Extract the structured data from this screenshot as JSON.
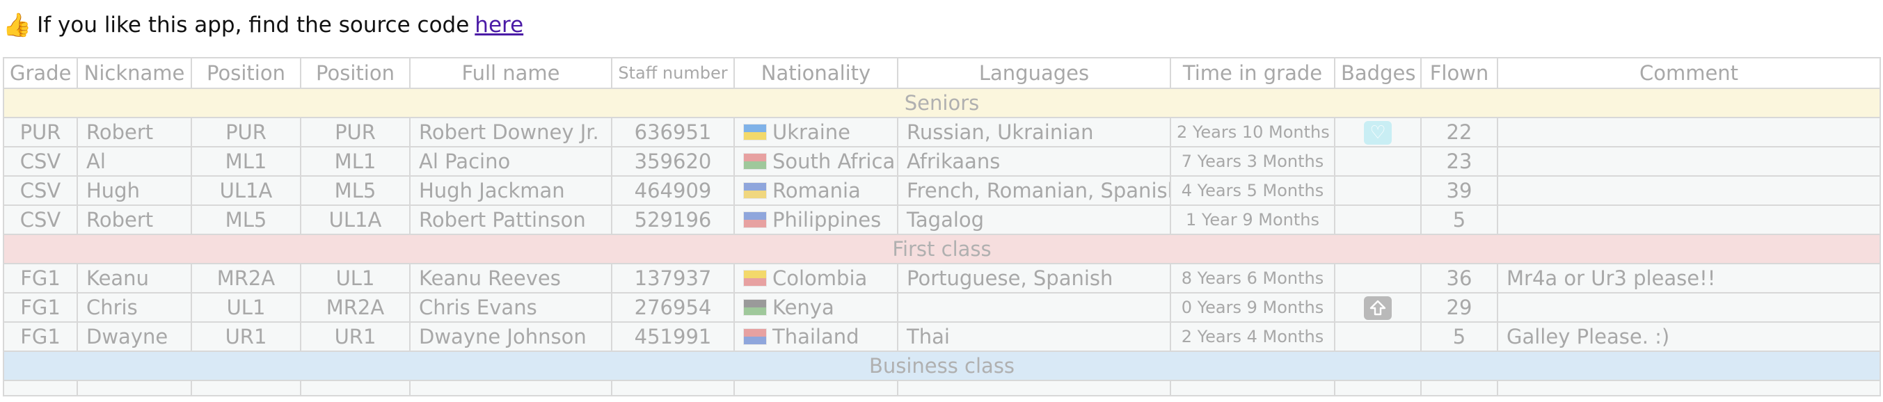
{
  "header": {
    "prefix": "If you like this app, find the source code",
    "link_label": "here"
  },
  "columns": [
    "Grade",
    "Nickname",
    "Position",
    "Position",
    "Full name",
    "Staff number",
    "Nationality",
    "Languages",
    "Time in grade",
    "Badges",
    "Flown",
    "Comment"
  ],
  "sections": [
    {
      "name": "Seniors",
      "color": "#fbf6dd",
      "rows": [
        {
          "grade": "PUR",
          "nickname": "Robert",
          "pos1": "PUR",
          "pos2": "PUR",
          "full_name": "Robert Downey Jr.",
          "staff": "636951",
          "nationality": "Ukraine",
          "flag": [
            "#7fb2e8",
            "#f3d96b"
          ],
          "languages": "Russian, Ukrainian",
          "time": "2 Years 10 Months",
          "badge": "heart-badge",
          "flown": "22",
          "comment": ""
        },
        {
          "grade": "CSV",
          "nickname": "Al",
          "pos1": "ML1",
          "pos2": "ML1",
          "full_name": "Al Pacino",
          "staff": "359620",
          "nationality": "South Africa",
          "flag": [
            "#e7a1a1",
            "#9fc89b"
          ],
          "languages": "Afrikaans",
          "time": "7 Years 3 Months",
          "badge": "",
          "flown": "23",
          "comment": ""
        },
        {
          "grade": "CSV",
          "nickname": "Hugh",
          "pos1": "UL1A",
          "pos2": "ML5",
          "full_name": "Hugh Jackman",
          "staff": "464909",
          "nationality": "Romania",
          "flag": [
            "#8fa6dc",
            "#f0d77f"
          ],
          "languages": "French, Romanian, Spanish",
          "time": "4 Years 5 Months",
          "badge": "",
          "flown": "39",
          "comment": ""
        },
        {
          "grade": "CSV",
          "nickname": "Robert",
          "pos1": "ML5",
          "pos2": "UL1A",
          "full_name": "Robert Pattinson",
          "staff": "529196",
          "nationality": "Philippines",
          "flag": [
            "#8fa6dc",
            "#e7a1a1"
          ],
          "languages": "Tagalog",
          "time": "1 Year 9 Months",
          "badge": "",
          "flown": "5",
          "comment": ""
        }
      ]
    },
    {
      "name": "First class",
      "color": "#f6dede",
      "rows": [
        {
          "grade": "FG1",
          "nickname": "Keanu",
          "pos1": "MR2A",
          "pos2": "UL1",
          "full_name": "Keanu Reeves",
          "staff": "137937",
          "nationality": "Colombia",
          "flag": [
            "#f3d96b",
            "#e7a1a1"
          ],
          "languages": "Portuguese, Spanish",
          "time": "8 Years 6 Months",
          "badge": "",
          "flown": "36",
          "comment": "Mr4a or Ur3 please!!"
        },
        {
          "grade": "FG1",
          "nickname": "Chris",
          "pos1": "UL1",
          "pos2": "MR2A",
          "full_name": "Chris Evans",
          "staff": "276954",
          "nationality": "Kenya",
          "flag": [
            "#9a9a9a",
            "#9fc89b"
          ],
          "languages": "",
          "time": "0 Years 9 Months",
          "badge": "upgrade-badge",
          "flown": "29",
          "comment": ""
        },
        {
          "grade": "FG1",
          "nickname": "Dwayne",
          "pos1": "UR1",
          "pos2": "UR1",
          "full_name": "Dwayne Johnson",
          "staff": "451991",
          "nationality": "Thailand",
          "flag": [
            "#e7a1a1",
            "#8fa6dc"
          ],
          "languages": "Thai",
          "time": "2 Years 4 Months",
          "badge": "",
          "flown": "5",
          "comment": "Galley Please. :)"
        }
      ]
    },
    {
      "name": "Business class",
      "color": "#d9e9f6",
      "rows": []
    }
  ]
}
